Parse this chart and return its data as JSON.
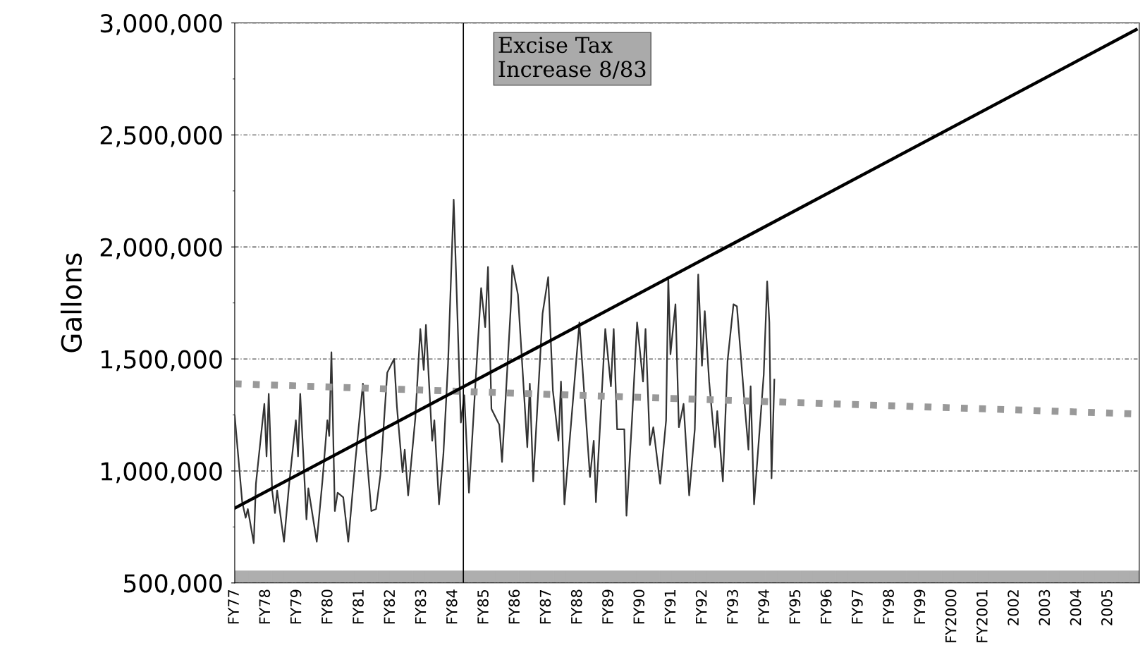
{
  "chart_data": {
    "type": "line",
    "ylabel": "Gallons",
    "ylim": [
      500000,
      3000000
    ],
    "yticks": [
      {
        "value": 500000,
        "label": "500,000"
      },
      {
        "value": 1000000,
        "label": "1,000,000"
      },
      {
        "value": 1500000,
        "label": "1,500,000"
      },
      {
        "value": 2000000,
        "label": "2,000,000"
      },
      {
        "value": 2500000,
        "label": "2,500,000"
      },
      {
        "value": 3000000,
        "label": "3,000,000"
      }
    ],
    "xlim": [
      1977,
      2006
    ],
    "xticks": [
      {
        "value": 1977,
        "label": "FY77"
      },
      {
        "value": 1978,
        "label": "FY78"
      },
      {
        "value": 1979,
        "label": "FY79"
      },
      {
        "value": 1980,
        "label": "FY80"
      },
      {
        "value": 1981,
        "label": "FY81"
      },
      {
        "value": 1982,
        "label": "FY82"
      },
      {
        "value": 1983,
        "label": "FY83"
      },
      {
        "value": 1984,
        "label": "FY84"
      },
      {
        "value": 1985,
        "label": "FY85"
      },
      {
        "value": 1986,
        "label": "FY86"
      },
      {
        "value": 1987,
        "label": "FY87"
      },
      {
        "value": 1988,
        "label": "FY88"
      },
      {
        "value": 1989,
        "label": "FY89"
      },
      {
        "value": 1990,
        "label": "FY90"
      },
      {
        "value": 1991,
        "label": "FY91"
      },
      {
        "value": 1992,
        "label": "FY92"
      },
      {
        "value": 1993,
        "label": "FY93"
      },
      {
        "value": 1994,
        "label": "FY94"
      },
      {
        "value": 1995,
        "label": "FY95"
      },
      {
        "value": 1996,
        "label": "FY96"
      },
      {
        "value": 1997,
        "label": "FY97"
      },
      {
        "value": 1998,
        "label": "FY98"
      },
      {
        "value": 1999,
        "label": "FY99"
      },
      {
        "value": 2000,
        "label": "FY2000"
      },
      {
        "value": 2001,
        "label": "FY2001"
      },
      {
        "value": 2002,
        "label": "2002"
      },
      {
        "value": 2003,
        "label": "2003"
      },
      {
        "value": 2004,
        "label": "2004"
      },
      {
        "value": 2005,
        "label": "2005"
      }
    ],
    "grid": "y",
    "marker": "none",
    "series": [
      {
        "color": "#333333",
        "line_style": "solid",
        "x": [
          1977.0,
          1977.24,
          1977.35,
          1977.42,
          1977.61,
          1977.68,
          1977.95,
          1978.02,
          1978.09,
          1978.2,
          1978.29,
          1978.36,
          1978.58,
          1978.74,
          1978.96,
          1979.03,
          1979.1,
          1979.3,
          1979.36,
          1979.63,
          1979.81,
          1979.97,
          1980.03,
          1980.1,
          1980.21,
          1980.3,
          1980.48,
          1980.64,
          1980.86,
          1981.11,
          1981.22,
          1981.38,
          1981.53,
          1981.67,
          1981.89,
          1982.11,
          1982.2,
          1982.38,
          1982.45,
          1982.56,
          1982.79,
          1982.95,
          1983.06,
          1983.13,
          1983.33,
          1983.4,
          1983.55,
          1983.69,
          1983.84,
          1984.02,
          1984.25,
          1984.36,
          1984.51,
          1984.9,
          1985.03,
          1985.12,
          1985.23,
          1985.48,
          1985.57,
          1985.86,
          1985.9,
          1986.08,
          1986.38,
          1986.46,
          1986.57,
          1986.87,
          1987.05,
          1987.2,
          1987.38,
          1987.46,
          1987.57,
          1988.05,
          1988.39,
          1988.51,
          1988.58,
          1988.88,
          1989.06,
          1989.15,
          1989.26,
          1989.49,
          1989.56,
          1989.74,
          1989.9,
          1990.09,
          1990.17,
          1990.31,
          1990.42,
          1990.64,
          1990.83,
          1990.9,
          1990.97,
          1991.13,
          1991.24,
          1991.39,
          1991.57,
          1991.75,
          1991.86,
          1991.98,
          1992.07,
          1992.21,
          1992.4,
          1992.47,
          1992.65,
          1992.8,
          1992.99,
          1993.1,
          1993.36,
          1993.47,
          1993.54,
          1993.65,
          1993.96,
          1994.07,
          1994.14,
          1994.21,
          1994.3
        ],
        "values": [
          1247000,
          861000,
          791000,
          830000,
          678000,
          943000,
          1299000,
          1065000,
          1344000,
          912000,
          812000,
          912000,
          684000,
          934000,
          1226000,
          1065000,
          1344000,
          784000,
          922000,
          684000,
          953000,
          1226000,
          1156000,
          1530000,
          821000,
          903000,
          882000,
          684000,
          1034000,
          1390000,
          1085000,
          821000,
          830000,
          982000,
          1439000,
          1500000,
          1287000,
          994000,
          1095000,
          891000,
          1236000,
          1634000,
          1451000,
          1652000,
          1135000,
          1226000,
          851000,
          1074000,
          1481000,
          2211000,
          1216000,
          1338000,
          903000,
          1816000,
          1642000,
          1911000,
          1277000,
          1207000,
          1040000,
          1755000,
          1917000,
          1787000,
          1106000,
          1390000,
          953000,
          1703000,
          1865000,
          1359000,
          1135000,
          1399000,
          851000,
          1663000,
          973000,
          1135000,
          861000,
          1634000,
          1378000,
          1634000,
          1186000,
          1186000,
          800000,
          1236000,
          1663000,
          1399000,
          1634000,
          1116000,
          1195000,
          943000,
          1226000,
          1865000,
          1521000,
          1744000,
          1195000,
          1299000,
          891000,
          1186000,
          1877000,
          1470000,
          1713000,
          1399000,
          1106000,
          1267000,
          953000,
          1490000,
          1744000,
          1735000,
          1277000,
          1095000,
          1378000,
          851000,
          1430000,
          1846000,
          1663000,
          967000,
          1408000
        ]
      },
      {
        "color": "#000000",
        "line_style": "solid",
        "x": [
          1977.0,
          2005.9
        ],
        "values": [
          834000,
          2970000
        ]
      },
      {
        "color": "#999999",
        "line_style": "dotted",
        "x": [
          1977.0,
          2006.0
        ],
        "values": [
          1389000,
          1254000
        ]
      }
    ],
    "ref_lines": [
      {
        "axis": "x",
        "value": 1984.33,
        "label": "Excise Tax\nIncrease 8/83",
        "color": "#000000"
      }
    ],
    "bands": [
      {
        "axis": "y",
        "from": 500000,
        "to": 555000,
        "color": "#9a9a9a"
      }
    ]
  }
}
